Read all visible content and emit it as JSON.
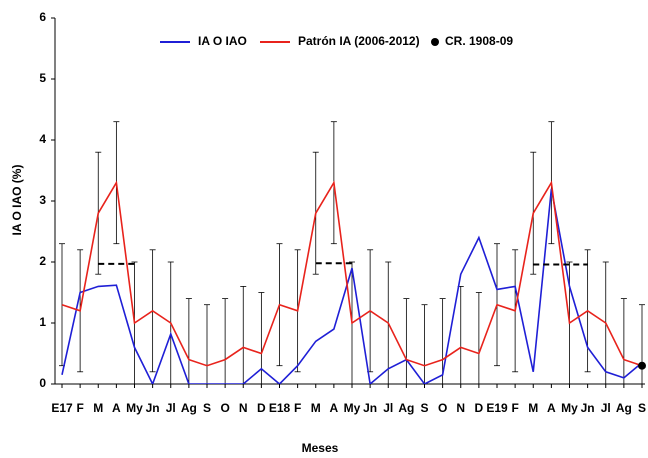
{
  "chart_data": {
    "type": "line",
    "x_label": "Meses",
    "y_label": "IA O IAO (%)",
    "categories": [
      "E17",
      "F",
      "M",
      "A",
      "My",
      "Jn",
      "Jl",
      "Ag",
      "S",
      "O",
      "N",
      "D",
      "E18",
      "F",
      "M",
      "A",
      "My",
      "Jn",
      "Jl",
      "Ag",
      "S",
      "O",
      "N",
      "D",
      "E19",
      "F",
      "M",
      "A",
      "My",
      "Jn",
      "Jl",
      "Ag",
      "S"
    ],
    "ylim": [
      0,
      6
    ],
    "yticks": [
      0,
      1,
      2,
      3,
      4,
      5,
      6
    ],
    "series": [
      {
        "name": "IA O IAO",
        "color": "#1f1fd6",
        "values": [
          0.15,
          1.5,
          1.6,
          1.62,
          0.6,
          0,
          0.82,
          0,
          0,
          0,
          0,
          0.25,
          0,
          0.3,
          0.7,
          0.9,
          1.9,
          0,
          0.25,
          0.4,
          0,
          0.15,
          1.8,
          2.4,
          1.55,
          1.6,
          0.2,
          3.2,
          1.6,
          0.6,
          0.2,
          0.1,
          0.35
        ]
      },
      {
        "name": "Patrón IA (2006-2012)",
        "color": "#e8231c",
        "values": [
          1.3,
          1.2,
          2.8,
          3.3,
          1.0,
          1.2,
          1.0,
          0.4,
          0.3,
          0.4,
          0.6,
          0.5,
          1.3,
          1.2,
          2.8,
          3.3,
          1.0,
          1.2,
          1.0,
          0.4,
          0.3,
          0.4,
          0.6,
          0.5,
          1.3,
          1.2,
          2.8,
          3.3,
          1.0,
          1.2,
          1.0,
          0.4,
          0.3
        ],
        "errors": [
          1,
          1,
          1,
          1,
          1,
          1,
          1,
          1,
          1,
          1,
          1,
          1,
          1,
          1,
          1,
          1,
          1,
          1,
          1,
          1,
          1,
          1,
          1,
          1,
          1,
          1,
          1,
          1,
          1,
          1,
          1,
          1,
          1
        ]
      },
      {
        "name": "CR. 1908-09",
        "color": "#000000",
        "marker": "circle",
        "values": [
          null,
          null,
          null,
          null,
          null,
          null,
          null,
          null,
          null,
          null,
          null,
          null,
          null,
          null,
          null,
          null,
          null,
          null,
          null,
          null,
          null,
          null,
          null,
          null,
          null,
          null,
          null,
          null,
          null,
          null,
          null,
          null,
          0.3
        ]
      },
      {
        "color": "#000000",
        "dash": true,
        "values": [
          null,
          null,
          1.97,
          1.97,
          1.97,
          null,
          null,
          null,
          null,
          null,
          null,
          null,
          null,
          null,
          1.98,
          1.98,
          1.98,
          null,
          null,
          null,
          null,
          null,
          null,
          null,
          null,
          null,
          1.96,
          1.96,
          1.96,
          1.96,
          null,
          null,
          null
        ]
      }
    ]
  }
}
